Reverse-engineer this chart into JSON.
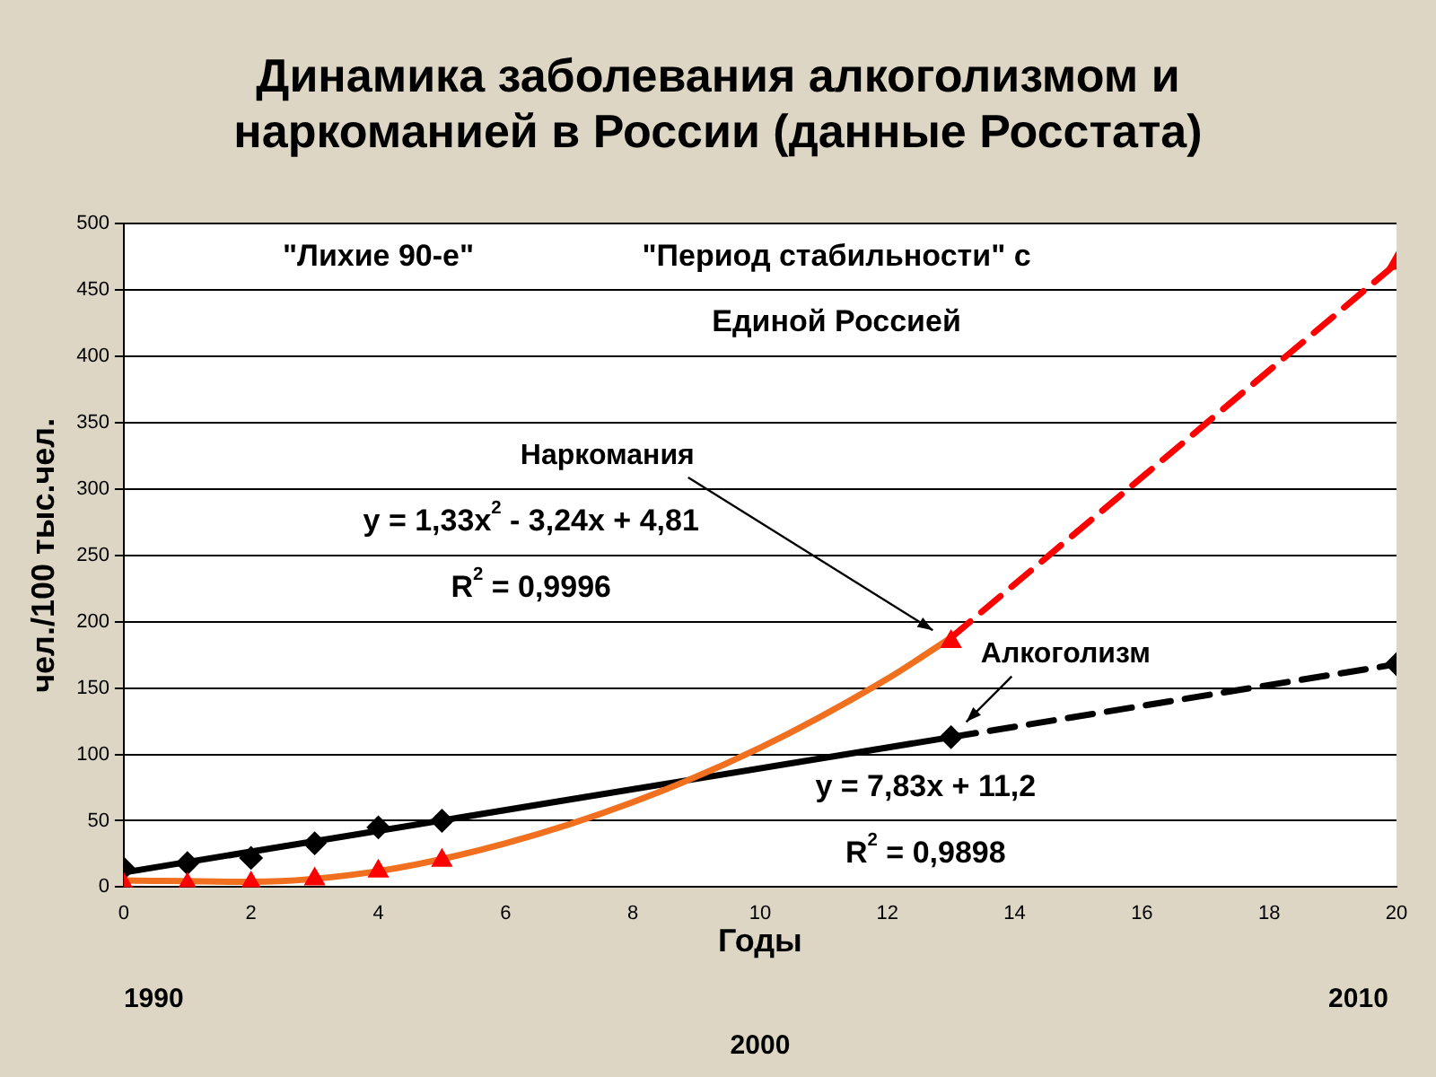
{
  "chart_data": {
    "type": "scatter",
    "title": "Динамика заболевания алкоголизмом и наркоманией в России (данные Росстата)",
    "xlabel": "Годы",
    "ylabel": "чел./100 тыс.чел.",
    "xlim": [
      0,
      20
    ],
    "xticks": [
      0,
      2,
      4,
      6,
      8,
      10,
      12,
      14,
      16,
      18,
      20
    ],
    "ylim": [
      0,
      500
    ],
    "yticks": [
      0,
      50,
      100,
      150,
      200,
      250,
      300,
      350,
      400,
      450,
      500
    ],
    "grid": "y",
    "legend": false,
    "series": [
      {
        "name": "Наркомания",
        "marker": "triangle",
        "color": "#ff0000",
        "x": [
          0,
          1,
          2,
          3,
          4,
          5,
          13,
          20
        ],
        "values": [
          2,
          2,
          3,
          6,
          12,
          20,
          185,
          470
        ]
      },
      {
        "name": "Алкоголизм",
        "marker": "diamond",
        "color": "#000000",
        "x": [
          0,
          1,
          2,
          3,
          4,
          5,
          13,
          20
        ],
        "values": [
          14,
          18,
          22,
          33,
          45,
          50,
          113,
          168
        ]
      },
      {
        "type": "line",
        "marker": "none",
        "color": "#f07020",
        "line_style": "solid",
        "x": [
          0,
          2,
          4,
          6,
          8,
          10,
          12,
          13
        ],
        "values": [
          5,
          4,
          12,
          33,
          64,
          105,
          157,
          188
        ]
      },
      {
        "type": "line",
        "marker": "none",
        "color": "#ff0000",
        "line_style": "dashed",
        "x": [
          13,
          20
        ],
        "values": [
          188,
          470
        ]
      },
      {
        "type": "line",
        "marker": "none",
        "color": "#000000",
        "line_style": "solid",
        "x": [
          0,
          13
        ],
        "values": [
          11,
          113
        ]
      },
      {
        "type": "line",
        "marker": "none",
        "color": "#000000",
        "line_style": "dashed",
        "x": [
          13,
          20
        ],
        "values": [
          113,
          168
        ]
      }
    ],
    "annotations": [
      "\"Лихие 90-е\"",
      "\"Период стабильности\" с",
      "Единой Россией",
      "y = 1,33x$^{2}$ - 3,24x + 4,81",
      "R$^{2}$ = 0,9996",
      "y = 7,83x + 11,2",
      "R$^{2}$ = 0,9898",
      "1990",
      "2000",
      "2010"
    ]
  }
}
